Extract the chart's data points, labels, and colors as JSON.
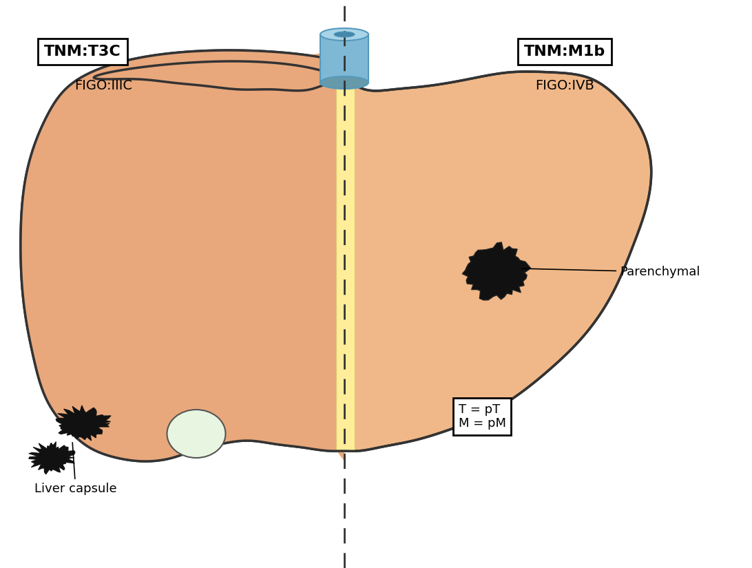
{
  "background_color": "#ffffff",
  "liver_fill_left": "#E8A87C",
  "liver_fill_right": "#F0B888",
  "liver_outline": "#333333",
  "divider_color": "#FFED99",
  "dashed_line_color": "#333333",
  "tumor_color": "#111111",
  "gallbladder_fill": "#E8F5E0",
  "gallbladder_outline": "#555555",
  "liver_capsule_tumor_color": "#111111",
  "duct_fill": "#7EB8D4",
  "duct_outline": "#5599BB",
  "tnm_t3c_label": "TNM:T3C",
  "figo_iiic_label": "FIGO:IIIC",
  "tnm_m1b_label": "TNM:M1b",
  "figo_ivb_label": "FIGO:IVB",
  "t_pt_label": "T = pT",
  "m_pm_label": "M = pM",
  "parenchymal_label": "Parenchymal",
  "liver_capsule_label": "Liver capsule"
}
